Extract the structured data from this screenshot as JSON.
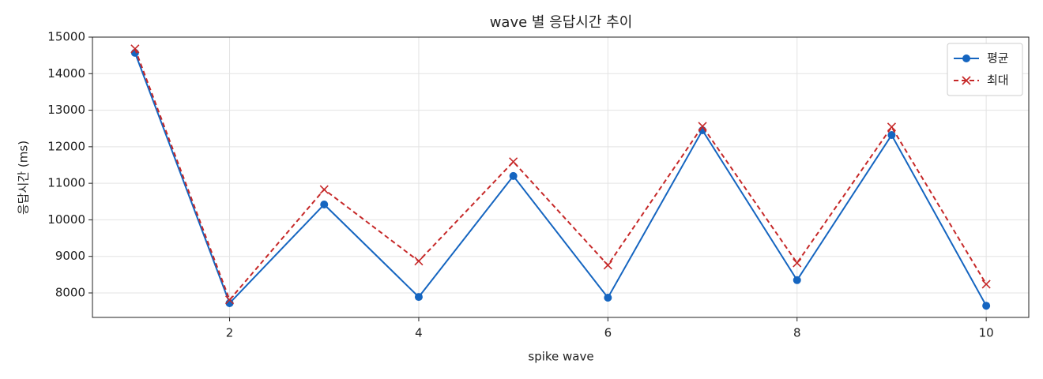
{
  "chart_data": {
    "type": "line",
    "title": "wave 별 응답시간 추이",
    "xlabel": "spike wave",
    "ylabel": "응답시간 (ms)",
    "x": [
      1,
      2,
      3,
      4,
      5,
      6,
      7,
      8,
      9,
      10
    ],
    "series": [
      {
        "name": "평균",
        "color": "#1565c0",
        "linestyle": "solid",
        "marker": "circle",
        "values": [
          14570,
          7720,
          10420,
          7890,
          11200,
          7870,
          12450,
          8350,
          12320,
          7650
        ]
      },
      {
        "name": "최대",
        "color": "#c62828",
        "linestyle": "dashed",
        "marker": "x",
        "values": [
          14680,
          7810,
          10830,
          8870,
          11590,
          8760,
          12560,
          8820,
          12540,
          8240
        ]
      }
    ],
    "xlim": [
      0.55,
      10.45
    ],
    "ylim": [
      7330,
      15000
    ],
    "xticks": [
      2,
      4,
      6,
      8,
      10
    ],
    "yticks": [
      8000,
      9000,
      10000,
      11000,
      12000,
      13000,
      14000,
      15000
    ],
    "grid": true,
    "legend": "upper right"
  }
}
